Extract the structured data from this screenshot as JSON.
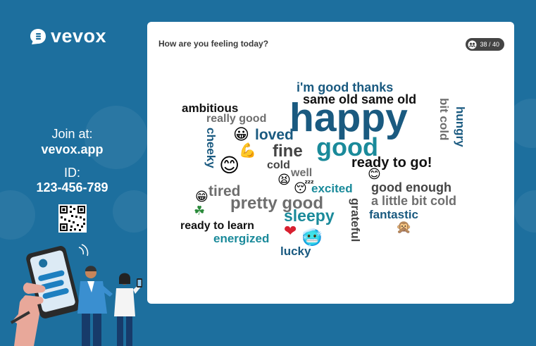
{
  "brand": {
    "name": "vevox"
  },
  "join": {
    "label": "Join at:",
    "url": "vevox.app",
    "id_label": "ID:",
    "id_value": "123-456-789"
  },
  "card": {
    "question": "How are you feeling today?",
    "counter": "38 / 40"
  },
  "words": [
    "i'm good thanks",
    "same old same old",
    "ambitious",
    "really good",
    "happy",
    "loved",
    "bit cold",
    "hungry",
    "fine",
    "good",
    "cheeky",
    "cold",
    "well",
    "ready to go!",
    "tired",
    "excited",
    "good enough",
    "pretty good",
    "sleepy",
    "a little bit cold",
    "grateful",
    "fantastic",
    "ready to learn",
    "energized",
    "lucky"
  ],
  "emojis": {
    "smile": "😀",
    "muscle": "💪",
    "grin": "😊",
    "tired_face": "😫",
    "sleeping": "😴",
    "happy": "😁",
    "clover": "☘",
    "heart": "❤",
    "cold_face": "🥶",
    "monkey": "🙊"
  },
  "colors": {
    "background": "#1d6f9e",
    "navy": "#1a5a80",
    "teal": "#1a8a9a"
  }
}
